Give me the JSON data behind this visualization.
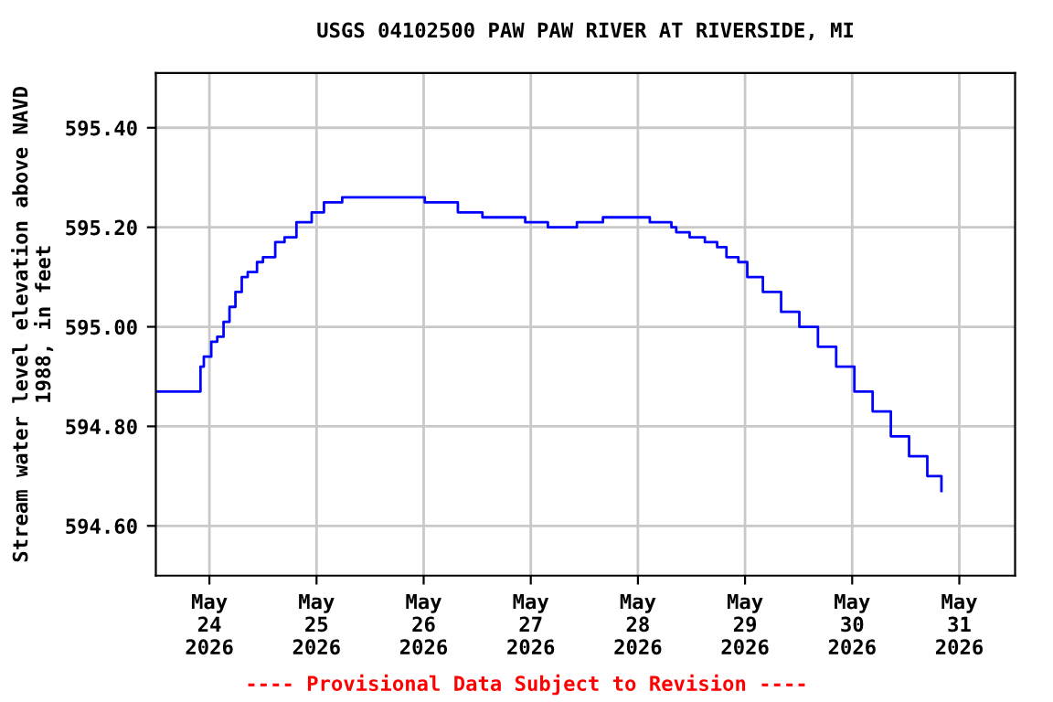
{
  "chart_data": {
    "type": "step",
    "title": "USGS 04102500 PAW PAW RIVER AT RIVERSIDE, MI",
    "ylabel": "Stream water level elevation above NAVD\n1988, in feet",
    "x": [
      "2026-05-23T12:00",
      "2026-05-23T21:40",
      "2026-05-23T22:00",
      "2026-05-23T22:45",
      "2026-05-24T00:25",
      "2026-05-24T01:45",
      "2026-05-24T03:10",
      "2026-05-24T04:30",
      "2026-05-24T05:50",
      "2026-05-24T07:15",
      "2026-05-24T08:35",
      "2026-05-24T10:40",
      "2026-05-24T12:00",
      "2026-05-24T14:45",
      "2026-05-24T16:50",
      "2026-05-24T19:30",
      "2026-05-24T22:55",
      "2026-05-25T01:40",
      "2026-05-25T05:45",
      "2026-05-26T00:15",
      "2026-05-26T07:40",
      "2026-05-26T13:10",
      "2026-05-26T22:45",
      "2026-05-27T03:50",
      "2026-05-27T10:20",
      "2026-05-27T16:10",
      "2026-05-28T02:40",
      "2026-05-28T07:30",
      "2026-05-28T08:35",
      "2026-05-28T11:35",
      "2026-05-28T15:00",
      "2026-05-28T17:45",
      "2026-05-28T19:50",
      "2026-05-28T22:30",
      "2026-05-29T00:30",
      "2026-05-29T04:00",
      "2026-05-29T08:05",
      "2026-05-29T12:10",
      "2026-05-29T16:20",
      "2026-05-29T20:25",
      "2026-05-30T00:30",
      "2026-05-30T04:35",
      "2026-05-30T08:40",
      "2026-05-30T12:45",
      "2026-05-30T16:50",
      "2026-05-30T20:00"
    ],
    "series": [
      {
        "color": "#0000ff",
        "values": [
          594.87,
          594.87,
          594.92,
          594.94,
          594.97,
          594.98,
          595.01,
          595.04,
          595.07,
          595.1,
          595.11,
          595.13,
          595.14,
          595.17,
          595.18,
          595.21,
          595.23,
          595.25,
          595.26,
          595.25,
          595.23,
          595.22,
          595.21,
          595.2,
          595.21,
          595.22,
          595.21,
          595.2,
          595.19,
          595.18,
          595.17,
          595.16,
          595.14,
          595.13,
          595.1,
          595.07,
          595.03,
          595.0,
          594.96,
          594.92,
          594.87,
          594.83,
          594.78,
          594.74,
          594.7,
          594.67
        ]
      }
    ],
    "xlim": [
      "2026-05-23T12:00",
      "2026-05-31T12:30"
    ],
    "xticks": [
      {
        "value": "2026-05-24",
        "label": "May\n24\n2026"
      },
      {
        "value": "2026-05-25",
        "label": "May\n25\n2026"
      },
      {
        "value": "2026-05-26",
        "label": "May\n26\n2026"
      },
      {
        "value": "2026-05-27",
        "label": "May\n27\n2026"
      },
      {
        "value": "2026-05-28",
        "label": "May\n28\n2026"
      },
      {
        "value": "2026-05-29",
        "label": "May\n29\n2026"
      },
      {
        "value": "2026-05-30",
        "label": "May\n30\n2026"
      },
      {
        "value": "2026-05-31",
        "label": "May\n31\n2026"
      }
    ],
    "ylim": [
      594.5,
      595.51
    ],
    "yticks": [
      {
        "value": 594.6,
        "label": "594.60"
      },
      {
        "value": 594.8,
        "label": "594.80"
      },
      {
        "value": 595.0,
        "label": "595.00"
      },
      {
        "value": 595.2,
        "label": "595.20"
      },
      {
        "value": 595.4,
        "label": "595.40"
      }
    ],
    "grid": true,
    "legend": false,
    "annotations": [
      {
        "text": "---- Provisional Data Subject to Revision ----"
      }
    ]
  }
}
